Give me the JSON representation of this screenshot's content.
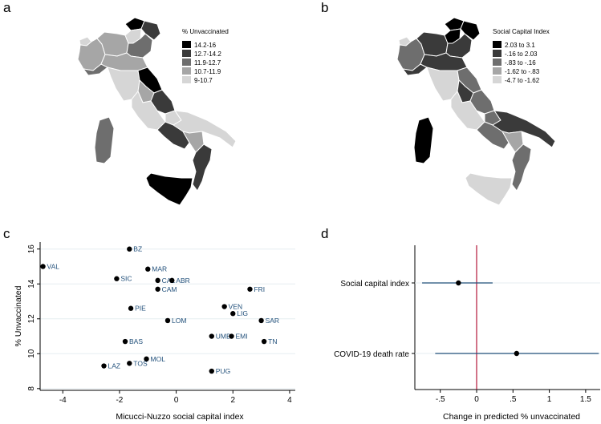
{
  "panels": {
    "a": {
      "letter": "a",
      "legend_title": "% Unvaccinated",
      "legend": [
        {
          "label": "14.2-16",
          "color": "#000000"
        },
        {
          "label": "12.7-14.2",
          "color": "#3a3a3a"
        },
        {
          "label": "11.9-12.7",
          "color": "#6e6e6e"
        },
        {
          "label": "10.7-11.9",
          "color": "#a6a6a6"
        },
        {
          "label": "9-10.7",
          "color": "#d6d6d6"
        }
      ]
    },
    "b": {
      "letter": "b",
      "legend_title": "Social Capital Index",
      "legend": [
        {
          "label": "2.03 to 3.1",
          "color": "#000000"
        },
        {
          "label": "-.16 to 2.03",
          "color": "#3a3a3a"
        },
        {
          "label": "-.83 to -.16",
          "color": "#6e6e6e"
        },
        {
          "label": "-1.62 to -.83",
          "color": "#a6a6a6"
        },
        {
          "label": "-4.7 to -1.62",
          "color": "#d6d6d6"
        }
      ]
    },
    "c": {
      "letter": "c"
    },
    "d": {
      "letter": "d"
    }
  },
  "chart_data": [
    {
      "type": "scatter",
      "xlabel": "Micucci-Nuzzo social capital index",
      "ylabel": "% Unvaccinated",
      "xlim": [
        -4.8,
        4.2
      ],
      "ylim": [
        7.9,
        16.4
      ],
      "xticks": [
        "-4",
        "-2",
        "0",
        "2",
        "4"
      ],
      "xtick_values": [
        -4,
        -2,
        0,
        2,
        4
      ],
      "yticks": [
        "8",
        "10",
        "12",
        "14",
        "16"
      ],
      "ytick_values": [
        8,
        10,
        12,
        14,
        16
      ],
      "grid": true,
      "points": [
        {
          "label": "BZ",
          "x": -1.65,
          "y": 16.0
        },
        {
          "label": "VAL",
          "x": -4.7,
          "y": 15.0
        },
        {
          "label": "MAR",
          "x": -1.0,
          "y": 14.85
        },
        {
          "label": "SIC",
          "x": -2.1,
          "y": 14.3
        },
        {
          "label": "CAL",
          "x": -0.65,
          "y": 14.2
        },
        {
          "label": "ABR",
          "x": -0.15,
          "y": 14.2
        },
        {
          "label": "CAM",
          "x": -0.65,
          "y": 13.7
        },
        {
          "label": "FRI",
          "x": 2.6,
          "y": 13.7
        },
        {
          "label": "VEN",
          "x": 1.7,
          "y": 12.7
        },
        {
          "label": "PIE",
          "x": -1.6,
          "y": 12.6
        },
        {
          "label": "LIG",
          "x": 2.0,
          "y": 12.3
        },
        {
          "label": "LOM",
          "x": -0.3,
          "y": 11.9
        },
        {
          "label": "SAR",
          "x": 3.0,
          "y": 11.9
        },
        {
          "label": "UMB",
          "x": 1.25,
          "y": 11.0
        },
        {
          "label": "EMI",
          "x": 1.95,
          "y": 11.0
        },
        {
          "label": "BAS",
          "x": -1.8,
          "y": 10.7
        },
        {
          "label": "TN",
          "x": 3.1,
          "y": 10.7
        },
        {
          "label": "MOL",
          "x": -1.05,
          "y": 9.7
        },
        {
          "label": "TOS",
          "x": -1.65,
          "y": 9.45
        },
        {
          "label": "LAZ",
          "x": -2.55,
          "y": 9.3
        },
        {
          "label": "PUG",
          "x": 1.25,
          "y": 9.0
        }
      ]
    },
    {
      "type": "scatter",
      "xlabel": "Change in predicted % unvaccinated",
      "xlim": [
        -0.85,
        1.7
      ],
      "xticks": [
        "-.5",
        "0",
        ".5",
        "1",
        "1.5"
      ],
      "xtick_values": [
        -0.5,
        0,
        0.5,
        1,
        1.5
      ],
      "reference_line": 0,
      "colors": {
        "reference_line": "#b5173a",
        "interval": "#1f4e79",
        "point": "#000000"
      },
      "coefficients": [
        {
          "label": "Social capital index",
          "estimate": -0.25,
          "ci": [
            -0.75,
            0.22
          ]
        },
        {
          "label": "COVID-19 death rate",
          "estimate": 0.55,
          "ci": [
            -0.57,
            1.68
          ]
        }
      ]
    }
  ]
}
